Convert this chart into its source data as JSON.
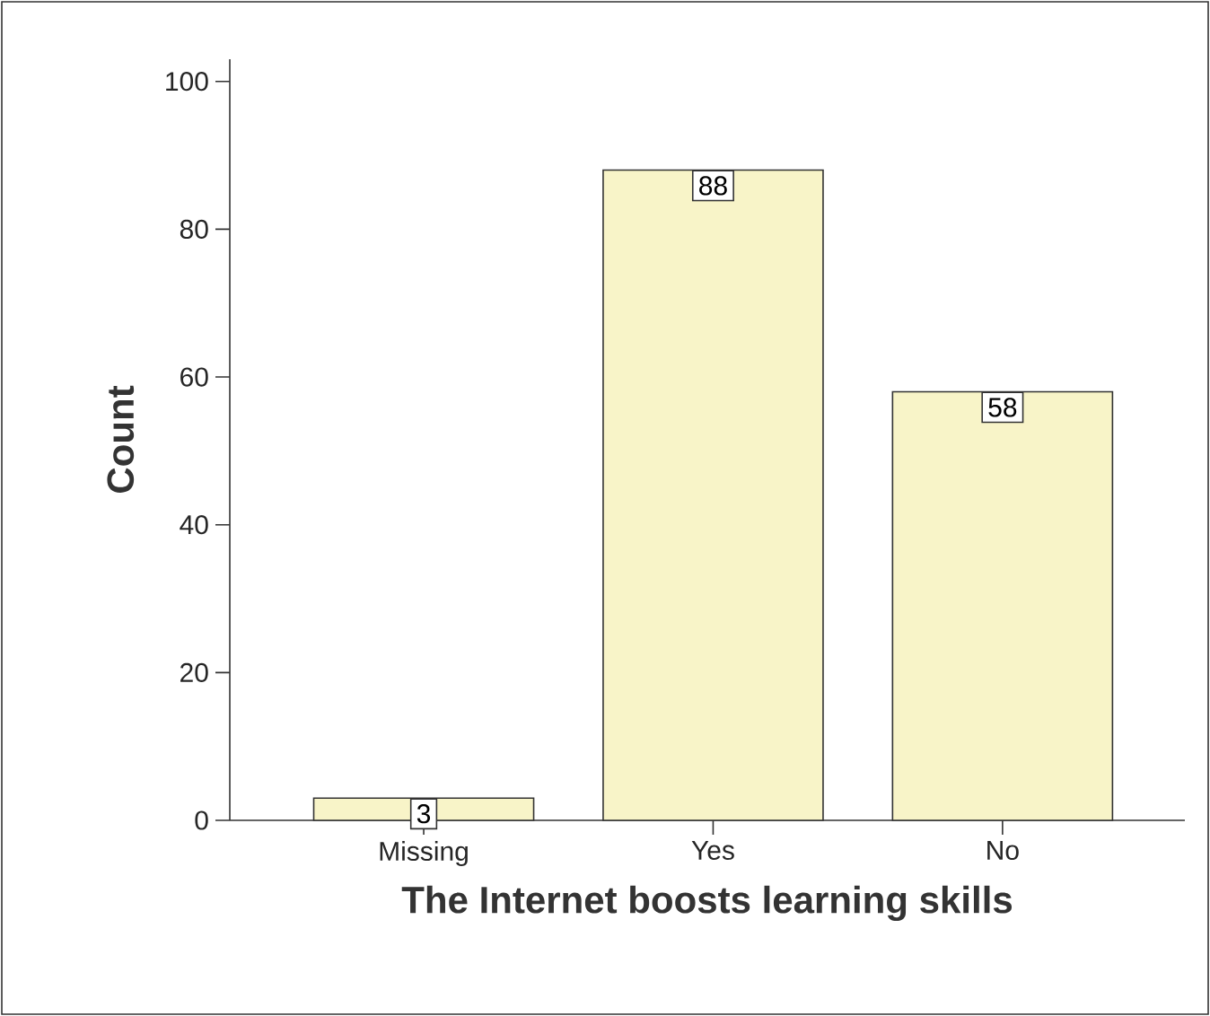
{
  "chart_data": {
    "type": "bar",
    "xlabel": "The Internet boosts learning skills",
    "ylabel": "Count",
    "categories": [
      "Missing",
      "Yes",
      "No"
    ],
    "values": [
      3,
      88,
      58
    ],
    "color": "#f8f4c8",
    "ylim": [
      0,
      103
    ],
    "yticks": [
      0,
      20,
      40,
      60,
      80,
      100
    ],
    "data_labels": true,
    "grid": false
  }
}
